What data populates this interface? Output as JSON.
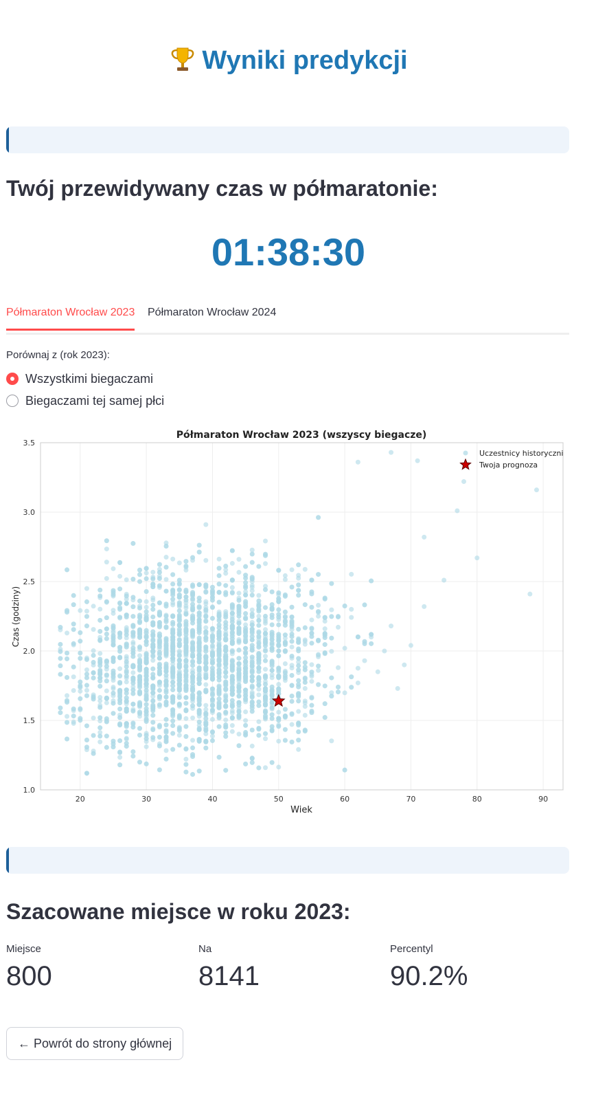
{
  "header": {
    "title": "Wyniki predykcji",
    "icon": "trophy-icon"
  },
  "prediction": {
    "heading": "Twój przewidywany czas w półmaratonie:",
    "time": "01:38:30"
  },
  "tabs": [
    {
      "label": "Półmaraton Wrocław 2023",
      "active": true
    },
    {
      "label": "Półmaraton Wrocław 2024",
      "active": false
    }
  ],
  "compare": {
    "label": "Porównaj z (rok 2023):",
    "options": [
      {
        "label": "Wszystkimi biegaczami",
        "selected": true
      },
      {
        "label": "Biegaczami tej samej płci",
        "selected": false
      }
    ]
  },
  "chart_data": {
    "type": "scatter",
    "title": "Półmaraton Wrocław 2023 (wszyscy biegacze)",
    "xlabel": "Wiek",
    "ylabel": "Czas (godziny)",
    "xlim": [
      14,
      93
    ],
    "ylim": [
      1.0,
      3.5
    ],
    "xticks": [
      20,
      30,
      40,
      50,
      60,
      70,
      80,
      90
    ],
    "yticks": [
      1.0,
      1.5,
      2.0,
      2.5,
      3.0,
      3.5
    ],
    "grid": true,
    "legend_position": "top-right",
    "series": [
      {
        "name": "Uczestnicy historyczni",
        "color": "#add8e6",
        "points": [
          [
            20,
            1.71
          ],
          [
            21,
            2.45
          ],
          [
            22,
            1.28
          ],
          [
            23,
            1.52
          ],
          [
            24,
            1.93
          ],
          [
            25,
            2.1
          ],
          [
            26,
            1.68
          ],
          [
            27,
            1.82
          ],
          [
            28,
            2.05
          ],
          [
            29,
            1.74
          ],
          [
            30,
            1.95
          ],
          [
            31,
            2.2
          ],
          [
            32,
            1.6
          ],
          [
            33,
            1.87
          ],
          [
            34,
            2.03
          ],
          [
            35,
            1.79
          ],
          [
            36,
            1.91
          ],
          [
            37,
            2.12
          ],
          [
            38,
            1.66
          ],
          [
            39,
            1.84
          ],
          [
            40,
            1.98
          ],
          [
            41,
            2.25
          ],
          [
            42,
            1.72
          ],
          [
            43,
            1.89
          ],
          [
            44,
            2.06
          ],
          [
            45,
            1.81
          ],
          [
            46,
            1.94
          ],
          [
            47,
            2.14
          ],
          [
            48,
            1.69
          ],
          [
            49,
            1.86
          ],
          [
            50,
            2.0
          ],
          [
            51,
            2.28
          ],
          [
            52,
            1.75
          ],
          [
            53,
            1.92
          ],
          [
            54,
            2.08
          ],
          [
            55,
            1.83
          ],
          [
            56,
            1.97
          ],
          [
            57,
            2.16
          ],
          [
            58,
            1.7
          ],
          [
            59,
            1.88
          ],
          [
            60,
            2.02
          ],
          [
            61,
            2.3
          ],
          [
            62,
            1.77
          ],
          [
            63,
            1.93
          ],
          [
            64,
            2.1
          ],
          [
            65,
            1.85
          ],
          [
            66,
            2.0
          ],
          [
            67,
            2.18
          ],
          [
            68,
            1.73
          ],
          [
            69,
            1.9
          ],
          [
            70,
            2.04
          ],
          [
            72,
            2.32
          ],
          [
            75,
            2.51
          ],
          [
            78,
            3.22
          ],
          [
            88,
            2.41
          ],
          [
            89,
            3.16
          ],
          [
            80,
            2.67
          ],
          [
            62,
            3.36
          ],
          [
            77,
            3.01
          ],
          [
            67,
            3.43
          ],
          [
            71,
            3.37
          ],
          [
            72,
            2.82
          ]
        ]
      },
      {
        "name": "Twoja prognoza",
        "color": "#cc0000",
        "marker": "star",
        "points": [
          [
            50,
            1.64
          ]
        ]
      }
    ]
  },
  "placement": {
    "heading": "Szacowane miejsce w roku 2023:",
    "metrics": [
      {
        "label": "Miejsce",
        "value": "800"
      },
      {
        "label": "Na",
        "value": "8141"
      },
      {
        "label": "Percentyl",
        "value": "90.2%"
      }
    ]
  },
  "back_button": {
    "label": "← Powrót do strony głównej"
  }
}
